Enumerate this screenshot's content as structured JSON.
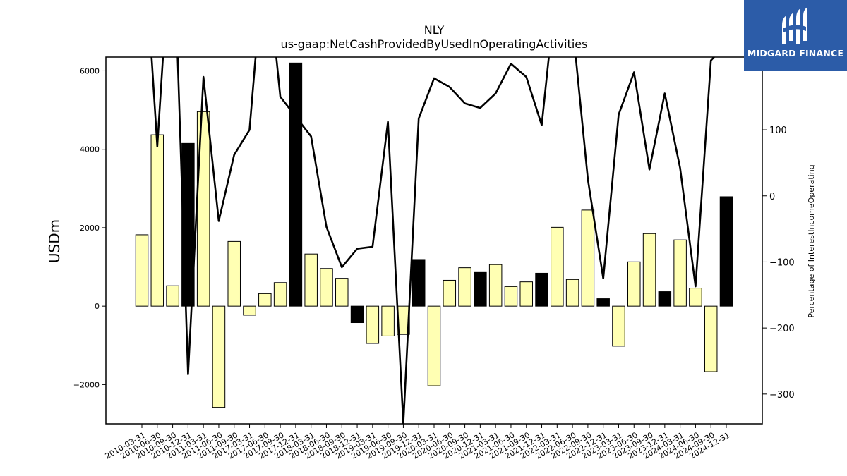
{
  "logo": {
    "name": "MIDGARD FINANCE",
    "icon": "midgard-logo-icon",
    "bg_color": "#2c5ca8"
  },
  "chart_data": {
    "type": "bar",
    "title": "NLY",
    "subtitle": "us-gaap:NetCashProvidedByUsedInOperatingActivities",
    "ylabel": "USDm",
    "ylabel_right": "Percentage of InterestIncomeOperating",
    "ylim": [
      -3000,
      6350
    ],
    "ylim_right": [
      -345,
      210
    ],
    "yticks": [
      -2000,
      0,
      2000,
      4000,
      6000
    ],
    "yticks_right": [
      -300,
      -200,
      -100,
      0,
      100
    ],
    "grid": false,
    "colors": {
      "bar_light": "#ffffb3",
      "bar_dark": "#000000",
      "line": "#000000"
    },
    "categories": [
      "2010-03-31",
      "2010-06-30",
      "2010-09-30",
      "2010-12-31",
      "2011-03-31",
      "2011-06-30",
      "2011-09-30",
      "2017-03-31",
      "2017-06-30",
      "2017-09-30",
      "2017-12-31",
      "2018-03-31",
      "2018-06-30",
      "2018-09-30",
      "2018-12-31",
      "2019-03-31",
      "2019-06-30",
      "2019-09-30",
      "2019-12-31",
      "2020-03-31",
      "2020-06-30",
      "2020-09-30",
      "2020-12-31",
      "2021-03-31",
      "2021-06-30",
      "2021-09-30",
      "2021-12-31",
      "2022-03-31",
      "2022-06-30",
      "2022-09-30",
      "2022-12-31",
      "2023-03-31",
      "2023-06-30",
      "2023-09-30",
      "2023-12-31",
      "2024-03-31",
      "2024-06-30",
      "2024-09-30",
      "2024-12-31"
    ],
    "series": [
      {
        "kind": "bar",
        "values": [
          1820,
          4370,
          520,
          4150,
          4960,
          -2580,
          1650,
          -230,
          320,
          600,
          6200,
          1330,
          960,
          710,
          -420,
          -950,
          -760,
          -720,
          1190,
          -2030,
          660,
          980,
          860,
          1060,
          500,
          620,
          840,
          2010,
          680,
          2450,
          190,
          -1020,
          1130,
          1850,
          370,
          1690,
          460,
          -1670,
          2790
        ],
        "highlight": [
          false,
          false,
          false,
          true,
          false,
          false,
          false,
          false,
          false,
          false,
          true,
          false,
          false,
          false,
          true,
          false,
          false,
          false,
          true,
          false,
          false,
          false,
          true,
          false,
          false,
          false,
          true,
          false,
          false,
          false,
          true,
          false,
          false,
          false,
          true,
          false,
          false,
          false,
          true
        ]
      },
      {
        "kind": "line",
        "axis": "right",
        "values": [
          440,
          75,
          440,
          -270,
          180,
          -38,
          62,
          100,
          380,
          150,
          120,
          90,
          -47,
          -108,
          -80,
          -77,
          112,
          -345,
          117,
          178,
          165,
          140,
          133,
          155,
          200,
          180,
          107,
          330,
          260,
          25,
          -125,
          123,
          187,
          40,
          155,
          42,
          -137,
          205,
          230
        ]
      }
    ]
  }
}
